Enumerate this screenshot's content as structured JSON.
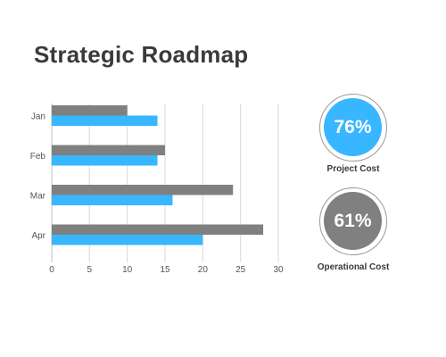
{
  "title": "Strategic Roadmap",
  "colors": {
    "series_gray": "#808080",
    "series_blue": "#38b6ff",
    "kpi_blue": "#38b6ff",
    "kpi_gray": "#808080",
    "title": "#3a3a3a"
  },
  "chart_data": {
    "type": "bar",
    "orientation": "horizontal",
    "categories": [
      "Jan",
      "Feb",
      "Mar",
      "Apr"
    ],
    "series": [
      {
        "values": [
          10,
          15,
          24,
          28
        ]
      },
      {
        "values": [
          14,
          14,
          16,
          20
        ]
      }
    ],
    "xlim": [
      0,
      30
    ],
    "xticks": [
      0,
      5,
      10,
      15,
      20,
      25,
      30
    ],
    "grid": "vertical",
    "legend": "none"
  },
  "kpis": [
    {
      "value": "76%",
      "label": "Project Cost",
      "color": "#38b6ff"
    },
    {
      "value": "61%",
      "label": "Operational Cost",
      "color": "#808080"
    }
  ]
}
